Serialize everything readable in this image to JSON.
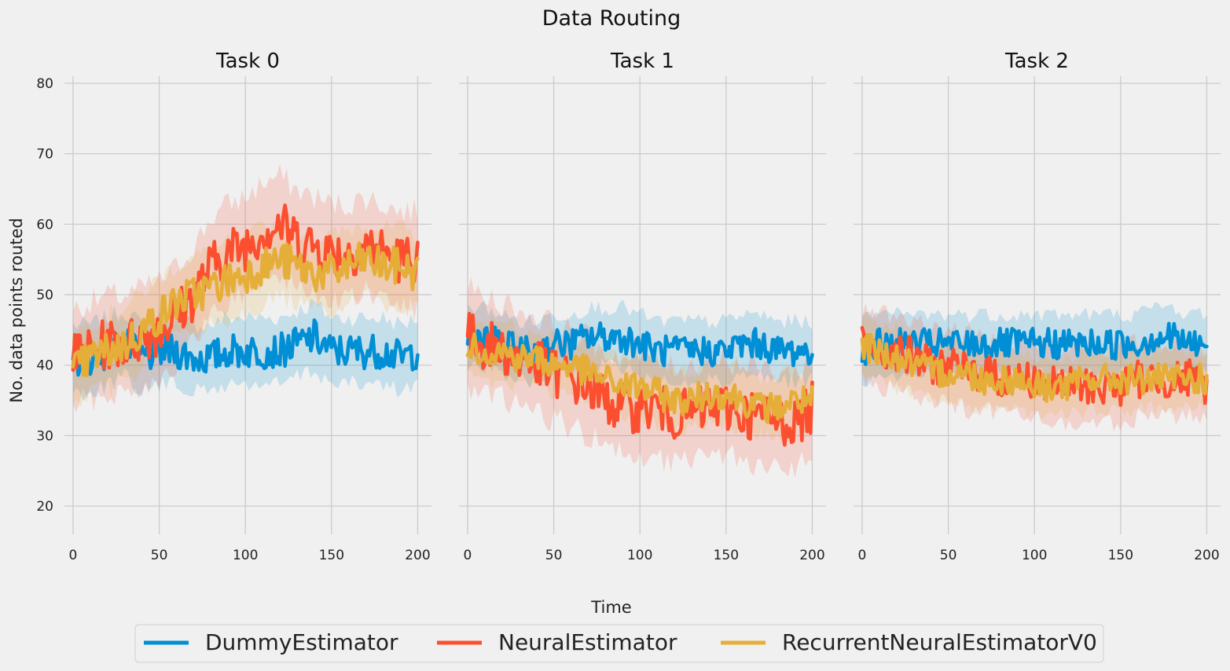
{
  "chart_data": {
    "type": "line",
    "title": "Data Routing",
    "xlabel": "Time",
    "ylabel": "No. data points routed",
    "xlim": [
      -5,
      208
    ],
    "ylim": [
      16,
      81
    ],
    "xticks": [
      0,
      50,
      100,
      150,
      200
    ],
    "yticks": [
      20,
      30,
      40,
      50,
      60,
      70,
      80
    ],
    "grid": true,
    "shared_y": true,
    "legend_placement": "bottom-center",
    "shaded_band": "variability band around each series",
    "colors": {
      "DummyEstimator": "#008fd5",
      "NeuralEstimator": "#fc4f30",
      "RecurrentNeuralEstimatorV0": "#e5ae38"
    },
    "legend": [
      "DummyEstimator",
      "NeuralEstimator",
      "RecurrentNeuralEstimatorV0"
    ],
    "panels": [
      {
        "title": "Task 0",
        "x": [
          0,
          10,
          20,
          30,
          40,
          50,
          60,
          70,
          80,
          90,
          100,
          110,
          120,
          130,
          140,
          150,
          160,
          170,
          180,
          190,
          200
        ],
        "series": [
          {
            "name": "DummyEstimator",
            "values": [
              41,
              41,
              42,
              43,
              41,
              42,
              42,
              41,
              41,
              42,
              42,
              42,
              42,
              43,
              44,
              42,
              42,
              42,
              42,
              41,
              42
            ],
            "band": 4.5
          },
          {
            "name": "NeuralEstimator",
            "values": [
              41,
              42,
              43,
              43,
              44,
              45,
              47,
              50,
              54,
              56,
              57,
              59,
              60,
              58,
              57,
              56,
              56,
              57,
              56,
              55,
              55
            ],
            "band": 6.5
          },
          {
            "name": "RecurrentNeuralEstimatorV0",
            "values": [
              39,
              41,
              42,
              43,
              45,
              47,
              49,
              50,
              51,
              52,
              53,
              54,
              55,
              54,
              53,
              53,
              54,
              55,
              54,
              54,
              53
            ],
            "band": 5.0
          }
        ]
      },
      {
        "title": "Task 1",
        "x": [
          0,
          10,
          20,
          30,
          40,
          50,
          60,
          70,
          80,
          90,
          100,
          110,
          120,
          130,
          140,
          150,
          160,
          170,
          180,
          190,
          200
        ],
        "series": [
          {
            "name": "DummyEstimator",
            "values": [
              44,
              44,
              43,
              42,
              42,
              43,
              43,
              44,
              44,
              44,
              43,
              42,
              42,
              42,
              42,
              42,
              43,
              43,
              42,
              42,
              42
            ],
            "band": 4.0
          },
          {
            "name": "NeuralEstimator",
            "values": [
              44,
              43,
              42,
              41,
              40,
              39,
              38,
              37,
              35,
              34,
              34,
              34,
              33,
              33,
              34,
              34,
              33,
              33,
              32,
              32,
              34
            ],
            "band": 6.5
          },
          {
            "name": "RecurrentNeuralEstimatorV0",
            "values": [
              43,
              42,
              42,
              41,
              41,
              40,
              40,
              39,
              38,
              37,
              37,
              36,
              35,
              35,
              36,
              36,
              35,
              34,
              34,
              35,
              35
            ],
            "band": 4.0
          }
        ]
      },
      {
        "title": "Task 2",
        "x": [
          0,
          10,
          20,
          30,
          40,
          50,
          60,
          70,
          80,
          90,
          100,
          110,
          120,
          130,
          140,
          150,
          160,
          170,
          180,
          190,
          200
        ],
        "series": [
          {
            "name": "DummyEstimator",
            "values": [
              42,
              43,
              43,
              43,
              43,
              43,
              43,
              43,
              43,
              43,
              43,
              43,
              43,
              43,
              43,
              43,
              43,
              44,
              44,
              43,
              43
            ],
            "band": 4.0
          },
          {
            "name": "NeuralEstimator",
            "values": [
              43,
              42,
              42,
              41,
              40,
              40,
              39,
              39,
              38,
              38,
              38,
              37,
              37,
              37,
              37,
              37,
              38,
              38,
              38,
              38,
              37
            ],
            "band": 5.0
          },
          {
            "name": "RecurrentNeuralEstimatorV0",
            "values": [
              43,
              42,
              41,
              40,
              39,
              39,
              39,
              38,
              38,
              38,
              37,
              37,
              37,
              38,
              38,
              38,
              38,
              38,
              38,
              38,
              38
            ],
            "band": 4.0
          }
        ]
      }
    ]
  }
}
